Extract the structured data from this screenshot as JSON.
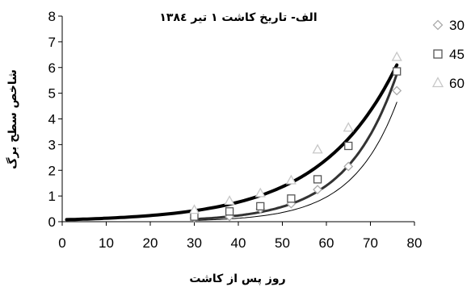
{
  "chart_data": {
    "type": "scatter",
    "title": "الف- تاریخ کاشت ۱ تیر ۱۳۸٤",
    "xlabel": "روز پس از کاشت",
    "ylabel": "شاخص سطح برگ",
    "xlim": [
      0,
      80
    ],
    "ylim": [
      0,
      8
    ],
    "x_ticks": [
      "0",
      "10",
      "20",
      "30",
      "40",
      "50",
      "60",
      "70",
      "80"
    ],
    "y_ticks": [
      "0",
      "1",
      "2",
      "3",
      "4",
      "5",
      "6",
      "7",
      "8"
    ],
    "grid": false,
    "legend_position": "right",
    "series": [
      {
        "name": "30",
        "marker": "diamond",
        "color": "#aaaaaa",
        "x": [
          30,
          38,
          45,
          52,
          58,
          65,
          76
        ],
        "y": [
          0.15,
          0.2,
          0.5,
          0.7,
          1.25,
          2.15,
          5.1
        ],
        "fit_line": {
          "color": "#000000",
          "width": 1,
          "x_start": 30,
          "x_end": 76,
          "y_start": 0.05,
          "y_end": 4.65
        }
      },
      {
        "name": "45",
        "marker": "square",
        "color": "#555555",
        "x": [
          30,
          38,
          45,
          52,
          58,
          65,
          76
        ],
        "y": [
          0.2,
          0.4,
          0.6,
          0.9,
          1.65,
          2.95,
          5.85
        ],
        "fit_line": {
          "color": "#333333",
          "width": 3,
          "x_start": 30,
          "x_end": 76,
          "y_start": 0.1,
          "y_end": 5.75
        }
      },
      {
        "name": "60",
        "marker": "triangle",
        "color": "#c8c8c8",
        "x": [
          30,
          38,
          45,
          52,
          58,
          65,
          76
        ],
        "y": [
          0.45,
          0.8,
          1.1,
          1.6,
          2.8,
          3.65,
          6.4
        ],
        "fit_line": {
          "color": "#000000",
          "width": 4,
          "x_start": 1,
          "x_end": 76,
          "y_start": 0.08,
          "y_end": 6.1
        }
      }
    ]
  }
}
